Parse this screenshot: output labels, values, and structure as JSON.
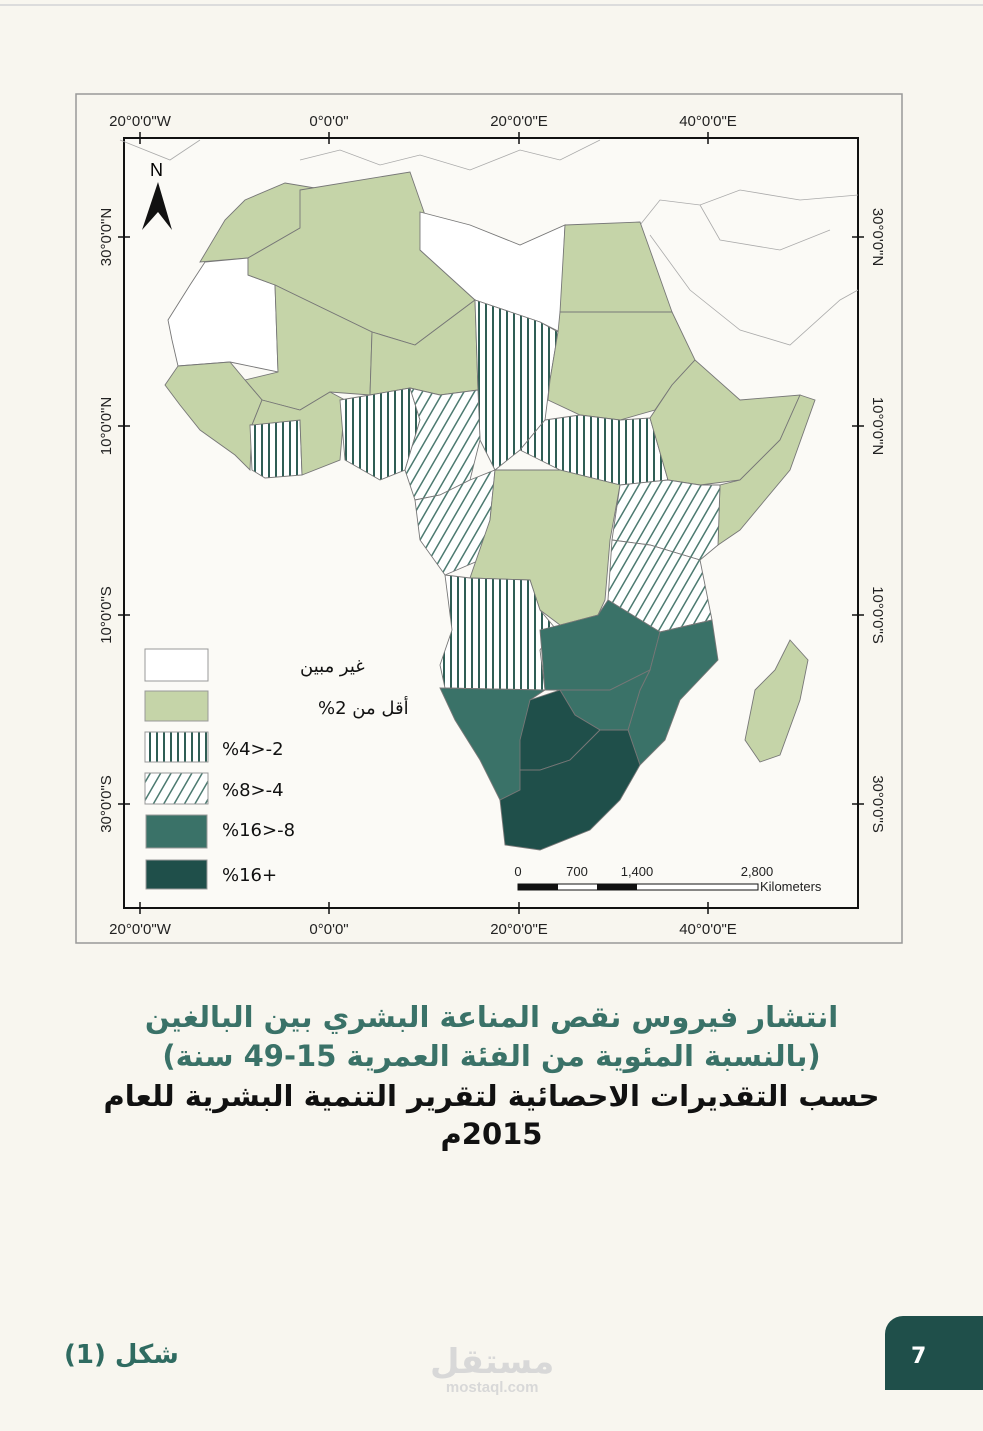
{
  "map": {
    "longitude_labels": [
      "20°0'0\"W",
      "0°0'0\"",
      "20°0'0\"E",
      "40°0'0\"E"
    ],
    "latitude_labels": [
      "30°0'0\"N",
      "10°0'0\"N",
      "10°0'0\"S",
      "30°0'0\"S"
    ],
    "north_label": "N",
    "legend": [
      {
        "label": "غير مبين",
        "fill": "#ffffff"
      },
      {
        "label": "أقل من 2%",
        "fill": "#c5d4a8"
      },
      {
        "label": "%4>-2",
        "fill": "vertical-stripes"
      },
      {
        "label": "%8>-4",
        "fill": "diagonal-stripes"
      },
      {
        "label": "%16>-8",
        "fill": "#3a7268"
      },
      {
        "label": "%16+",
        "fill": "#1f4f4a"
      }
    ],
    "scale_bar": {
      "ticks": [
        "0",
        "700",
        "1,400",
        "2,800"
      ],
      "unit": "Kilometers"
    }
  },
  "caption": {
    "line1": "انتشار فيروس نقص المناعة البشري بين البالغين",
    "line2": "(بالنسبة المئوية من الفئة العمرية 15-49 سنة)",
    "line3": "حسب التقديرات الاحصائية لتقرير التنمية البشرية للعام",
    "line4": "2015م"
  },
  "footer": {
    "figure_label": "شكل (1)",
    "page_number": "7",
    "watermark_ar": "مستقل",
    "watermark_en": "mostaql.com"
  },
  "colors": {
    "background": "#f8f6ef",
    "light_green": "#c5d4a8",
    "teal": "#3a7268",
    "dark_teal": "#1f4f4a"
  }
}
